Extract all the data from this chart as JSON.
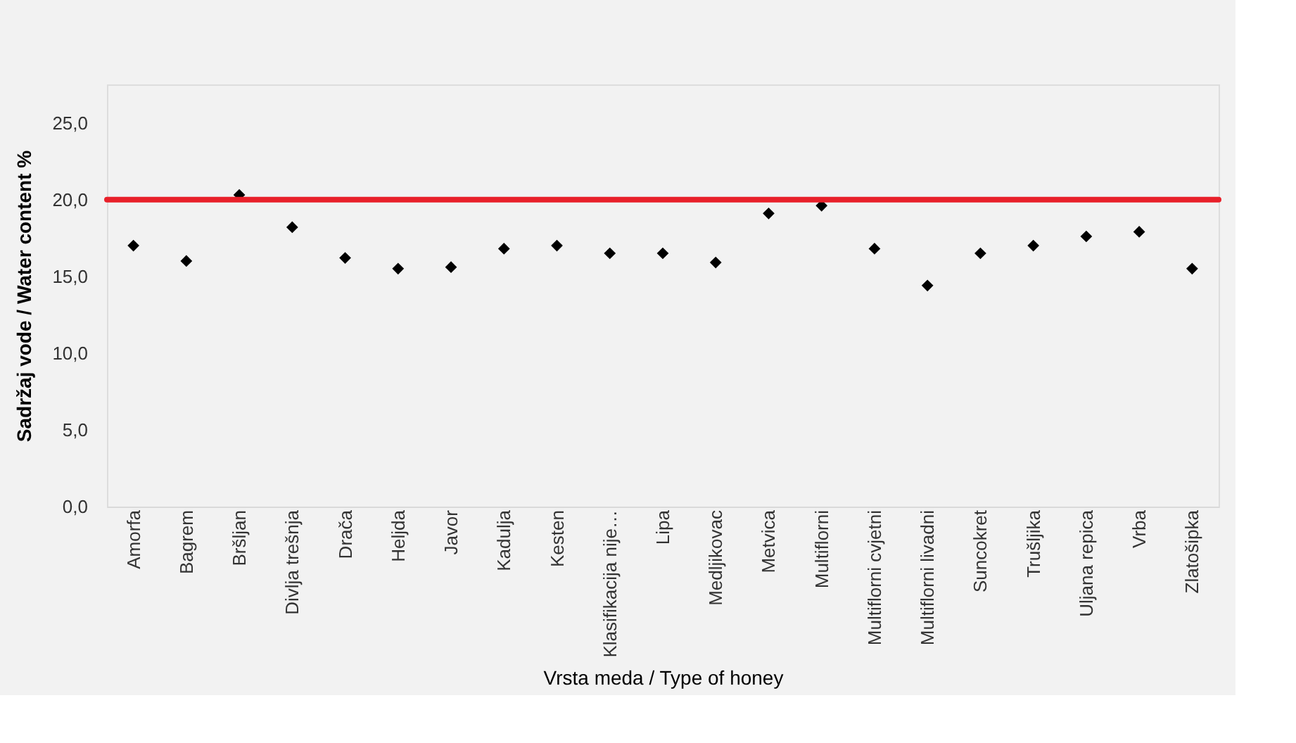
{
  "chart_data": {
    "type": "scatter",
    "xlabel": "Vrsta meda / Type of honey",
    "ylabel": "Sadržaj vode / Water content %",
    "categories": [
      "Amorfa",
      "Bagrem",
      "Bršljan",
      "Divlja trešnja",
      "Drača",
      "Heljda",
      "Javor",
      "Kadulja",
      "Kesten",
      "Klasifikacija nije…",
      "Lipa",
      "Medljikovac",
      "Metvica",
      "Multiflorni",
      "Multiflorni cvjetni",
      "Multiflorni livadni",
      "Suncokret",
      "Trušljika",
      "Uljana repica",
      "Vrba",
      "Zlatošipka"
    ],
    "series": [
      {
        "color": "#000000",
        "values": [
          17.0,
          16.0,
          20.3,
          18.2,
          16.2,
          15.5,
          15.6,
          16.8,
          17.0,
          16.5,
          16.5,
          15.9,
          19.1,
          19.6,
          16.8,
          14.4,
          16.5,
          17.0,
          17.6,
          17.9,
          15.5
        ]
      }
    ],
    "ylim": [
      0,
      27.5
    ],
    "yticks": [
      {
        "value": 0,
        "label": "0,0"
      },
      {
        "value": 5,
        "label": "5,0"
      },
      {
        "value": 10,
        "label": "10,0"
      },
      {
        "value": 15,
        "label": "15,0"
      },
      {
        "value": 20,
        "label": "20,0"
      },
      {
        "value": 25,
        "label": "25,0"
      }
    ],
    "ref_lines": [
      {
        "axis": "y",
        "value": 20,
        "color": "#e8202a",
        "line_style": "solid"
      }
    ],
    "marker": "diamond",
    "grid": false
  }
}
